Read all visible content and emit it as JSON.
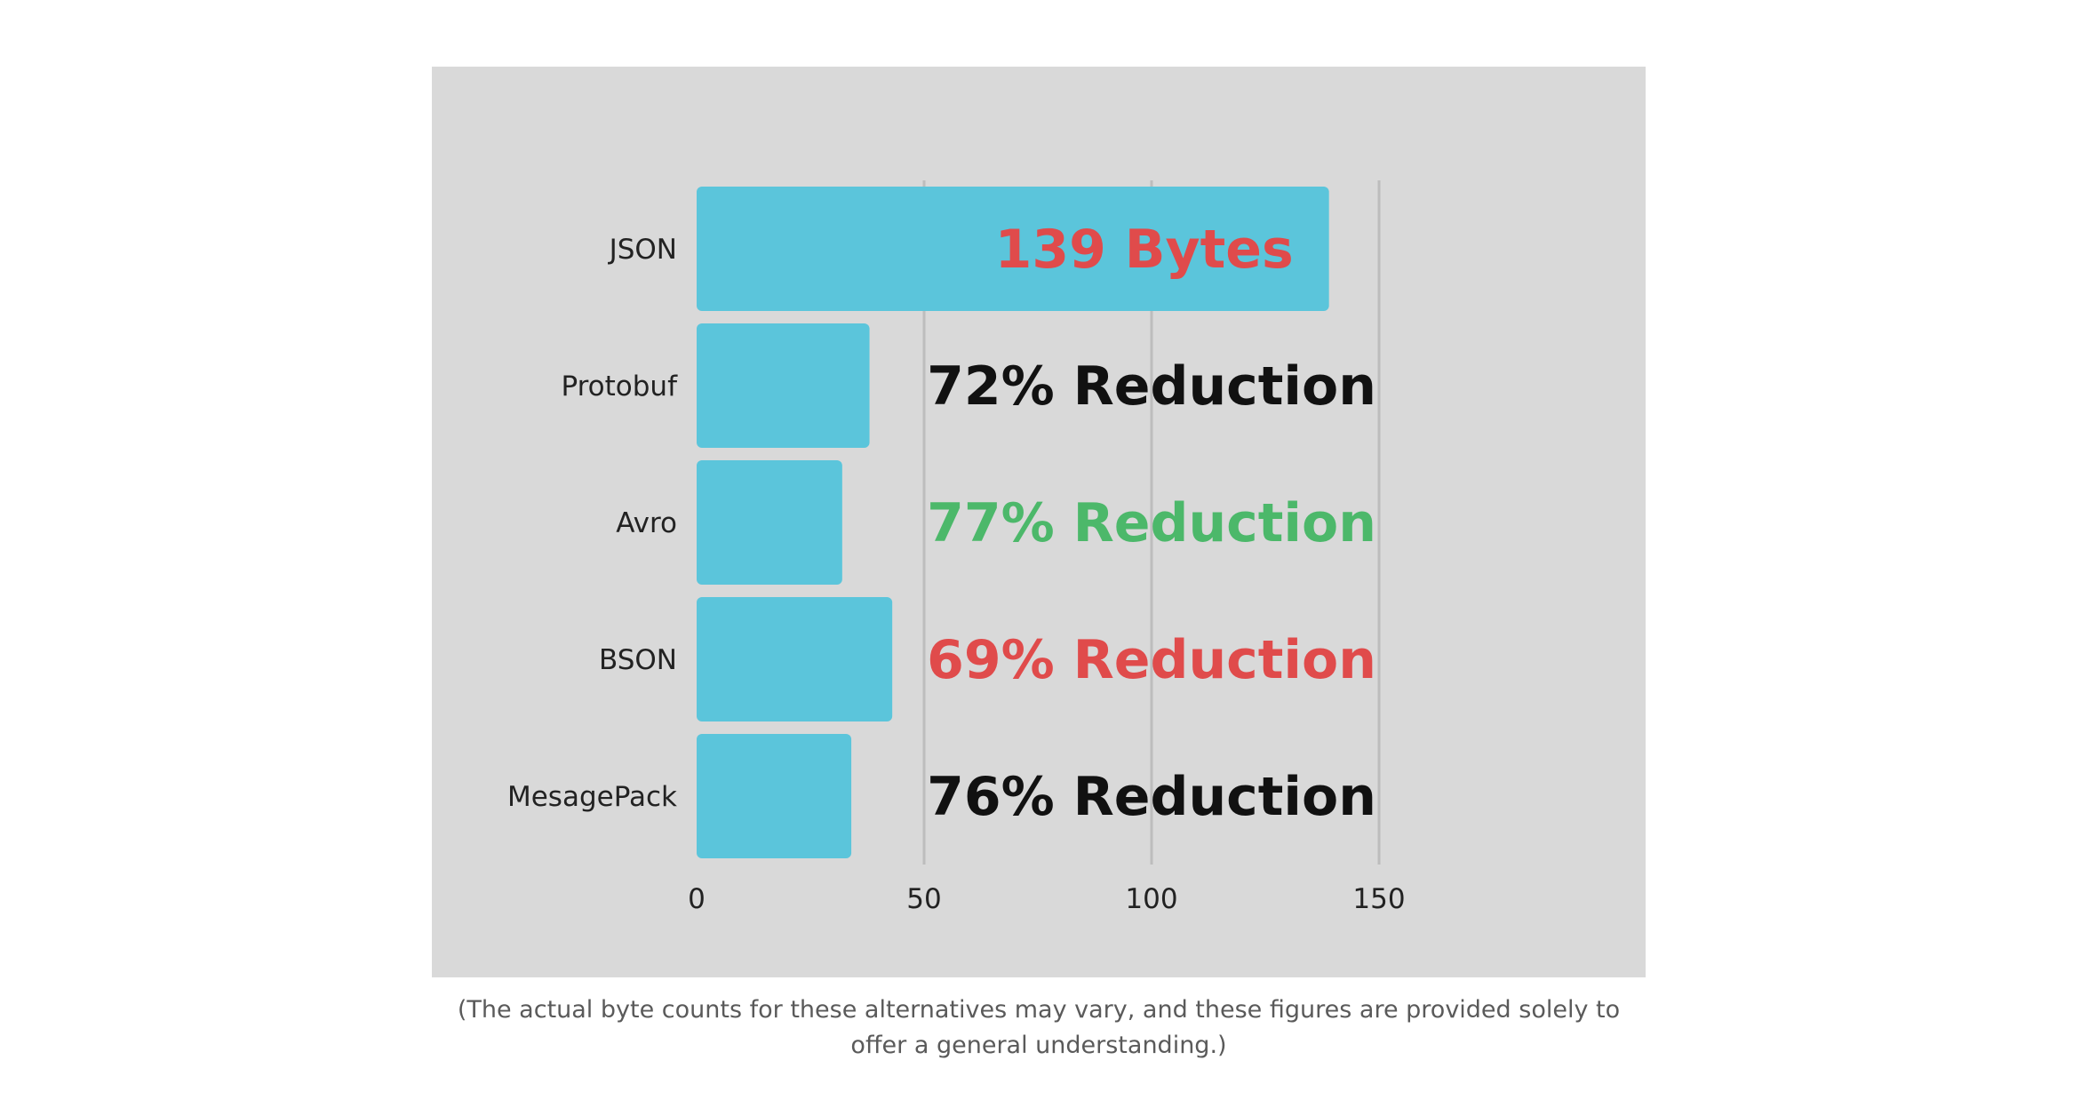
{
  "chart_data": {
    "type": "bar",
    "orientation": "horizontal",
    "categories": [
      "JSON",
      "Protobuf",
      "Avro",
      "BSON",
      "MesagePack"
    ],
    "values": [
      139,
      38,
      32,
      43,
      34
    ],
    "xlim": [
      0,
      150
    ],
    "xticks": [
      0,
      50,
      100,
      150
    ],
    "grid": true,
    "bar_color": "#5bc5db",
    "annotations": [
      {
        "text": "139 Bytes",
        "color": "#e04b4b"
      },
      {
        "text": "72% Reduction",
        "color": "#111111"
      },
      {
        "text": "77% Reduction",
        "color": "#4cb86a"
      },
      {
        "text": "69% Reduction",
        "color": "#e04b4b"
      },
      {
        "text": "76% Reduction",
        "color": "#111111"
      }
    ]
  },
  "caption": "(The actual byte counts for these alternatives may vary, and these figures are provided solely to offer a general understanding.)"
}
